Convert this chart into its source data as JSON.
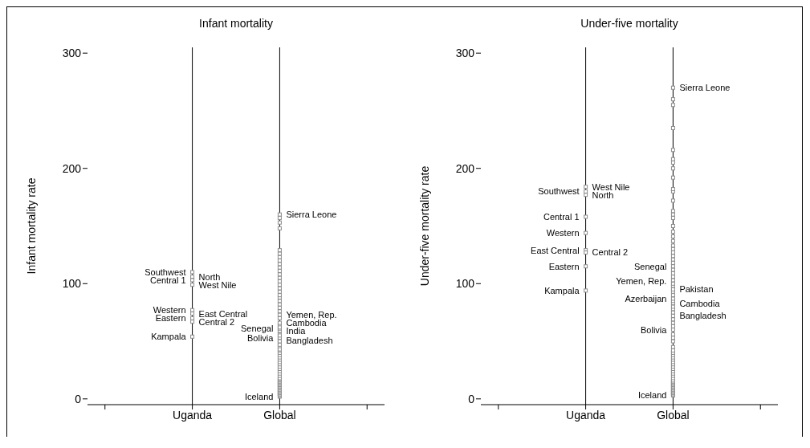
{
  "chart_data": [
    {
      "type": "scatter",
      "title": "Infant mortality",
      "ylabel": "Infant mortality rate",
      "categories": [
        "Uganda",
        "Global"
      ],
      "ylim": [
        -5,
        305
      ],
      "yticks": [
        0,
        100,
        200,
        300
      ],
      "grid": "x",
      "marker": "square",
      "series": [
        {
          "x": [
            "Uganda",
            "Uganda",
            "Uganda",
            "Uganda",
            "Uganda",
            "Uganda",
            "Uganda",
            "Uganda",
            "Uganda"
          ],
          "values": [
            110,
            106,
            103,
            99,
            77,
            74,
            70,
            67,
            54
          ],
          "color": "#8c8c8c"
        },
        {
          "x": [
            "Global",
            "Global",
            "Global",
            "Global",
            "Global",
            "Global",
            "Global",
            "Global",
            "Global",
            "Global",
            "Global",
            "Global",
            "Global",
            "Global",
            "Global",
            "Global",
            "Global",
            "Global",
            "Global",
            "Global",
            "Global",
            "Global",
            "Global",
            "Global",
            "Global",
            "Global",
            "Global",
            "Global",
            "Global",
            "Global",
            "Global",
            "Global",
            "Global",
            "Global",
            "Global",
            "Global",
            "Global",
            "Global",
            "Global",
            "Global",
            "Global",
            "Global",
            "Global",
            "Global",
            "Global",
            "Global",
            "Global",
            "Global",
            "Global",
            "Global",
            "Global",
            "Global",
            "Global",
            "Global",
            "Global",
            "Global",
            "Global",
            "Global",
            "Global",
            "Global",
            "Global",
            "Global",
            "Global",
            "Global",
            "Global",
            "Global",
            "Global",
            "Global"
          ],
          "values": [
            2,
            3,
            4,
            5,
            6,
            7,
            8,
            9,
            10,
            11,
            12,
            13,
            14,
            15,
            16,
            17,
            18,
            20,
            22,
            24,
            26,
            28,
            30,
            32,
            34,
            36,
            38,
            40,
            42,
            45,
            48,
            51,
            53,
            56,
            59,
            61,
            64,
            66,
            70,
            73,
            76,
            79,
            82,
            85,
            88,
            90,
            93,
            96,
            99,
            102,
            105,
            108,
            111,
            114,
            117,
            120,
            123,
            126,
            129,
            148,
            153,
            157,
            160,
            43,
            47,
            50,
            55,
            62
          ],
          "color": "#8c8c8c"
        }
      ],
      "annotations": [
        {
          "text": "Southwest",
          "x": "Uganda",
          "y": 110
        },
        {
          "text": "North",
          "x": "Uganda",
          "y": 106
        },
        {
          "text": "Central 1",
          "x": "Uganda",
          "y": 103
        },
        {
          "text": "West Nile",
          "x": "Uganda",
          "y": 99
        },
        {
          "text": "Western",
          "x": "Uganda",
          "y": 77
        },
        {
          "text": "East Central",
          "x": "Uganda",
          "y": 74
        },
        {
          "text": "Eastern",
          "x": "Uganda",
          "y": 70
        },
        {
          "text": "Central 2",
          "x": "Uganda",
          "y": 67
        },
        {
          "text": "Kampala",
          "x": "Uganda",
          "y": 54
        },
        {
          "text": "Sierra Leone",
          "x": "Global",
          "y": 160
        },
        {
          "text": "Yemen, Rep.",
          "x": "Global",
          "y": 73
        },
        {
          "text": "Cambodia",
          "x": "Global",
          "y": 66
        },
        {
          "text": "Senegal",
          "x": "Global",
          "y": 61
        },
        {
          "text": "India",
          "x": "Global",
          "y": 59
        },
        {
          "text": "Bolivia",
          "x": "Global",
          "y": 53
        },
        {
          "text": "Bangladesh",
          "x": "Global",
          "y": 51
        },
        {
          "text": "Iceland",
          "x": "Global",
          "y": 2
        }
      ]
    },
    {
      "type": "scatter",
      "title": "Under-five mortality",
      "ylabel": "Under-five mortality rate",
      "categories": [
        "Uganda",
        "Global"
      ],
      "ylim": [
        -5,
        305
      ],
      "yticks": [
        0,
        100,
        200,
        300
      ],
      "grid": "x",
      "marker": "square",
      "series": [
        {
          "x": [
            "Uganda",
            "Uganda",
            "Uganda",
            "Uganda",
            "Uganda",
            "Uganda",
            "Uganda",
            "Uganda",
            "Uganda"
          ],
          "values": [
            184,
            180,
            177,
            158,
            144,
            129,
            127,
            115,
            94
          ],
          "color": "#8c8c8c"
        },
        {
          "x": [
            "Global",
            "Global",
            "Global",
            "Global",
            "Global",
            "Global",
            "Global",
            "Global",
            "Global",
            "Global",
            "Global",
            "Global",
            "Global",
            "Global",
            "Global",
            "Global",
            "Global",
            "Global",
            "Global",
            "Global",
            "Global",
            "Global",
            "Global",
            "Global",
            "Global",
            "Global",
            "Global",
            "Global",
            "Global",
            "Global",
            "Global",
            "Global",
            "Global",
            "Global",
            "Global",
            "Global",
            "Global",
            "Global",
            "Global",
            "Global",
            "Global",
            "Global",
            "Global",
            "Global",
            "Global",
            "Global",
            "Global",
            "Global",
            "Global",
            "Global",
            "Global",
            "Global",
            "Global",
            "Global",
            "Global",
            "Global",
            "Global",
            "Global",
            "Global",
            "Global",
            "Global",
            "Global",
            "Global",
            "Global",
            "Global",
            "Global",
            "Global",
            "Global",
            "Global",
            "Global",
            "Global",
            "Global",
            "Global",
            "Global",
            "Global"
          ],
          "values": [
            3,
            4,
            5,
            6,
            7,
            8,
            9,
            10,
            11,
            12,
            13,
            14,
            15,
            16,
            18,
            20,
            22,
            24,
            26,
            28,
            30,
            32,
            34,
            36,
            38,
            40,
            42,
            45,
            50,
            53,
            56,
            60,
            63,
            66,
            69,
            72,
            75,
            78,
            80,
            83,
            85,
            87,
            90,
            93,
            95,
            98,
            100,
            103,
            106,
            109,
            112,
            115,
            118,
            121,
            124,
            127,
            130,
            133,
            137,
            141,
            145,
            150,
            157,
            160,
            163,
            172,
            180,
            182,
            192,
            200,
            205,
            208,
            216,
            235,
            255
          ],
          "color": "#8c8c8c"
        },
        {
          "x": [
            "Global",
            "Global"
          ],
          "values": [
            260,
            270
          ],
          "color": "#8c8c8c"
        }
      ],
      "annotations": [
        {
          "text": "West Nile",
          "x": "Uganda",
          "y": 184
        },
        {
          "text": "Southwest",
          "x": "Uganda",
          "y": 180
        },
        {
          "text": "North",
          "x": "Uganda",
          "y": 177
        },
        {
          "text": "Central 1",
          "x": "Uganda",
          "y": 158
        },
        {
          "text": "Western",
          "x": "Uganda",
          "y": 144
        },
        {
          "text": "East Central",
          "x": "Uganda",
          "y": 129
        },
        {
          "text": "Central 2",
          "x": "Uganda",
          "y": 127
        },
        {
          "text": "Eastern",
          "x": "Uganda",
          "y": 115
        },
        {
          "text": "Kampala",
          "x": "Uganda",
          "y": 94
        },
        {
          "text": "Sierra Leone",
          "x": "Global",
          "y": 270
        },
        {
          "text": "Senegal",
          "x": "Global",
          "y": 115
        },
        {
          "text": "Yemen, Rep.",
          "x": "Global",
          "y": 102
        },
        {
          "text": "Pakistan",
          "x": "Global",
          "y": 95
        },
        {
          "text": "Azerbaijan",
          "x": "Global",
          "y": 87
        },
        {
          "text": "Cambodia",
          "x": "Global",
          "y": 83
        },
        {
          "text": "Bangladesh",
          "x": "Global",
          "y": 72
        },
        {
          "text": "Bolivia",
          "x": "Global",
          "y": 60
        },
        {
          "text": "Iceland",
          "x": "Global",
          "y": 3
        }
      ]
    }
  ]
}
